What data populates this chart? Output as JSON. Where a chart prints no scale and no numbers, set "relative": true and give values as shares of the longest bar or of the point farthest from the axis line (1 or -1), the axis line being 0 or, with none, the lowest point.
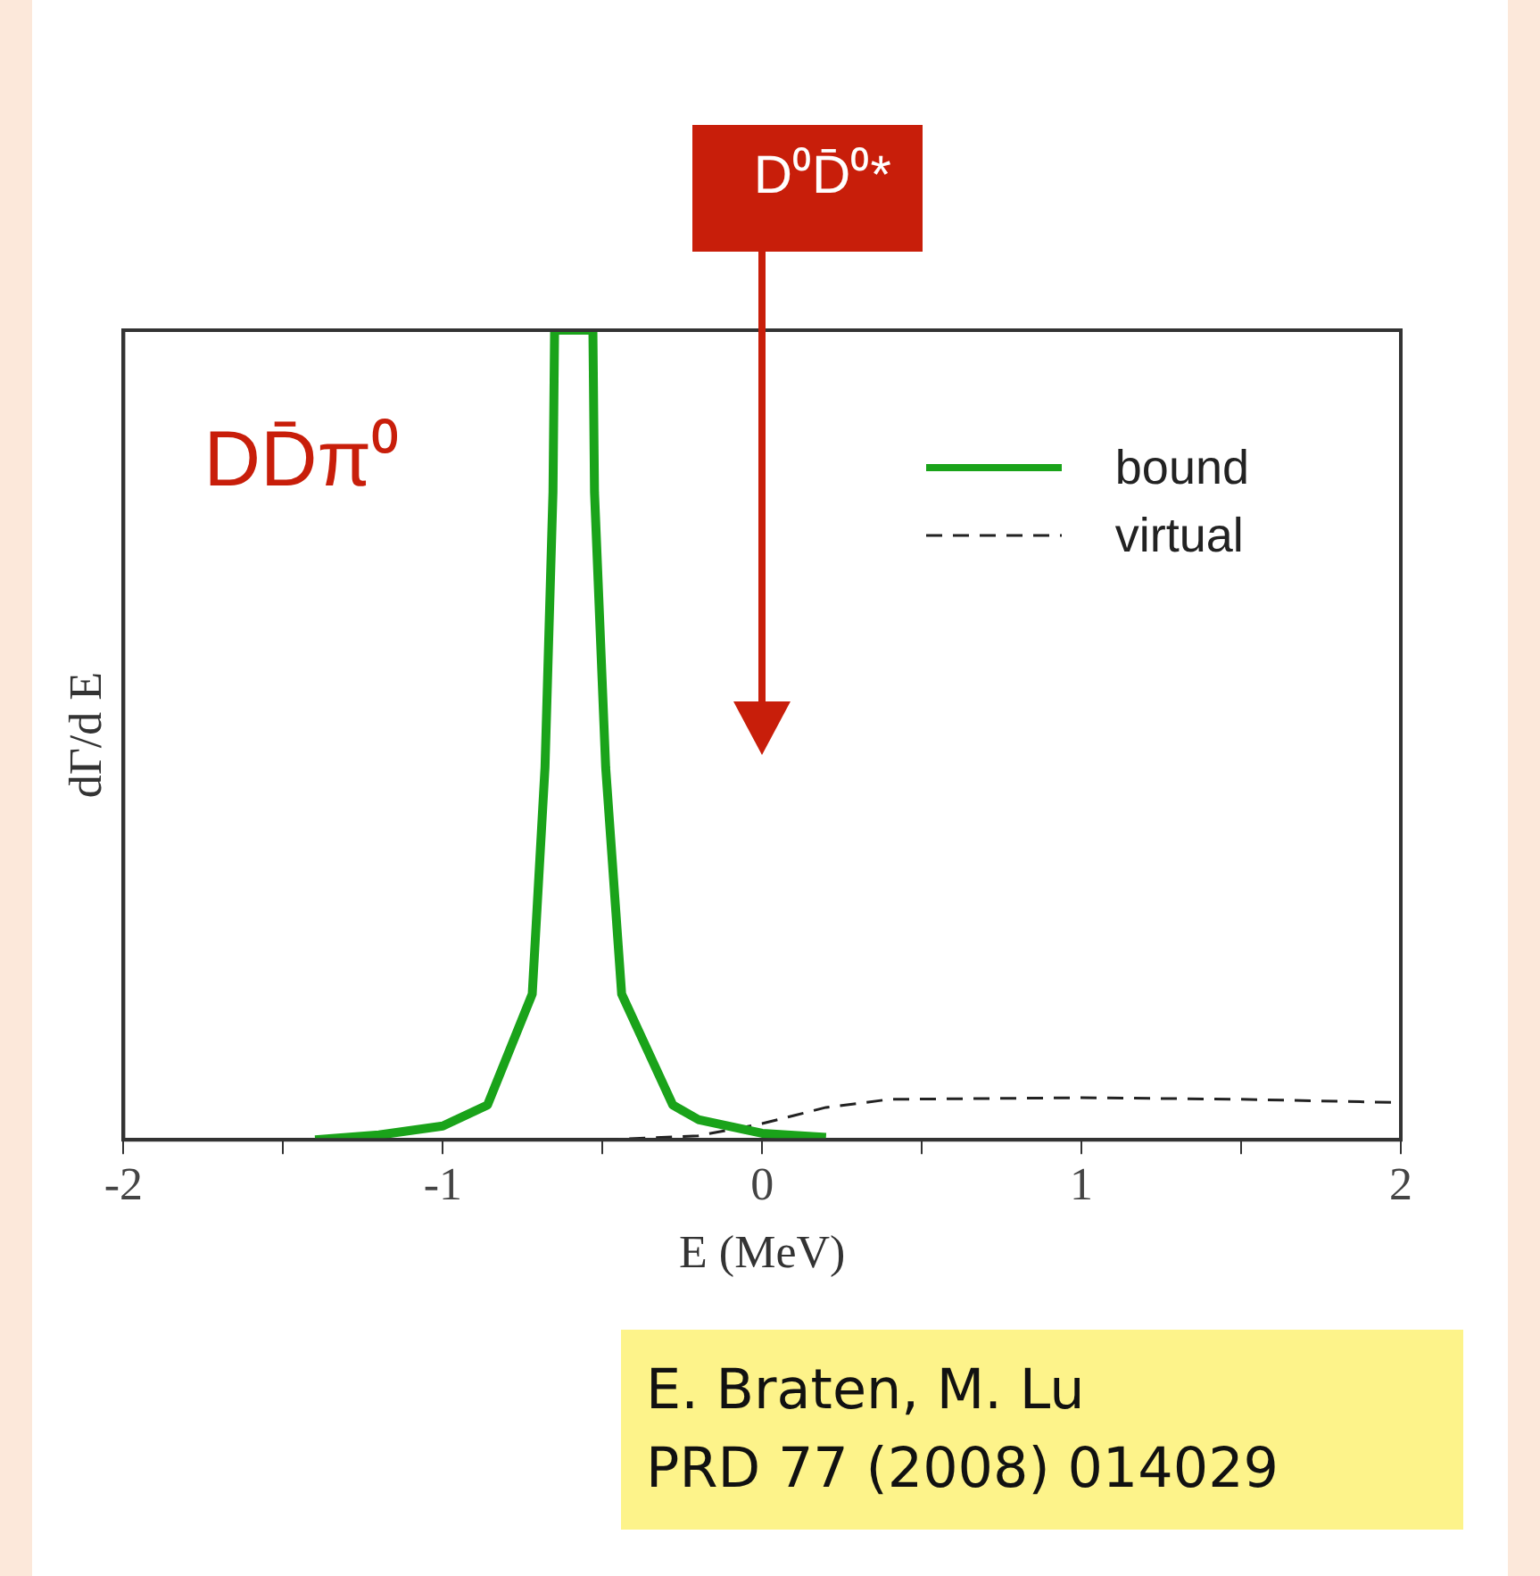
{
  "chart_data": {
    "type": "line",
    "xlabel": "E (MeV)",
    "ylabel": "dΓ/d E",
    "relative": true,
    "xlim": [
      -2,
      2
    ],
    "xticks": [
      -2,
      {
        "value": -1.5,
        "label": null
      },
      -1,
      {
        "value": -0.5,
        "label": null
      },
      0,
      {
        "value": 0.5,
        "label": null
      },
      1,
      {
        "value": 1.5,
        "label": null
      },
      2
    ],
    "tick_labels": "x",
    "legend": "top right",
    "grid": false,
    "marker": "none",
    "series": [
      {
        "name": "bound",
        "color": "#1aa31a",
        "line_style": "solid",
        "x": [
          -1.4,
          -1.2,
          -1,
          -0.86,
          -0.72,
          -0.68,
          -0.655,
          -0.65,
          -0.59,
          -0.53,
          -0.525,
          -0.49,
          -0.44,
          -0.28,
          -0.2,
          0,
          0.2
        ],
        "values": [
          0,
          0.006,
          0.017,
          0.043,
          0.18,
          0.46,
          0.8,
          1,
          1,
          1,
          0.8,
          0.46,
          0.18,
          0.043,
          0.025,
          0.008,
          0.003
        ]
      },
      {
        "name": "virtual",
        "color": "#222222",
        "line_style": "dashed",
        "x": [
          -0.5,
          -0.2,
          0,
          0.1,
          0.2,
          0.4,
          1,
          1.5,
          2
        ],
        "values": [
          0,
          0.005,
          0.02,
          0.03,
          0.04,
          0.05,
          0.052,
          0.05,
          0.046
        ]
      }
    ],
    "annotations": [
      "DD̄π⁰",
      "D⁰D̄⁰*",
      "E. Braten, M. Lu\nPRD 77 (2008) 014029"
    ]
  }
}
